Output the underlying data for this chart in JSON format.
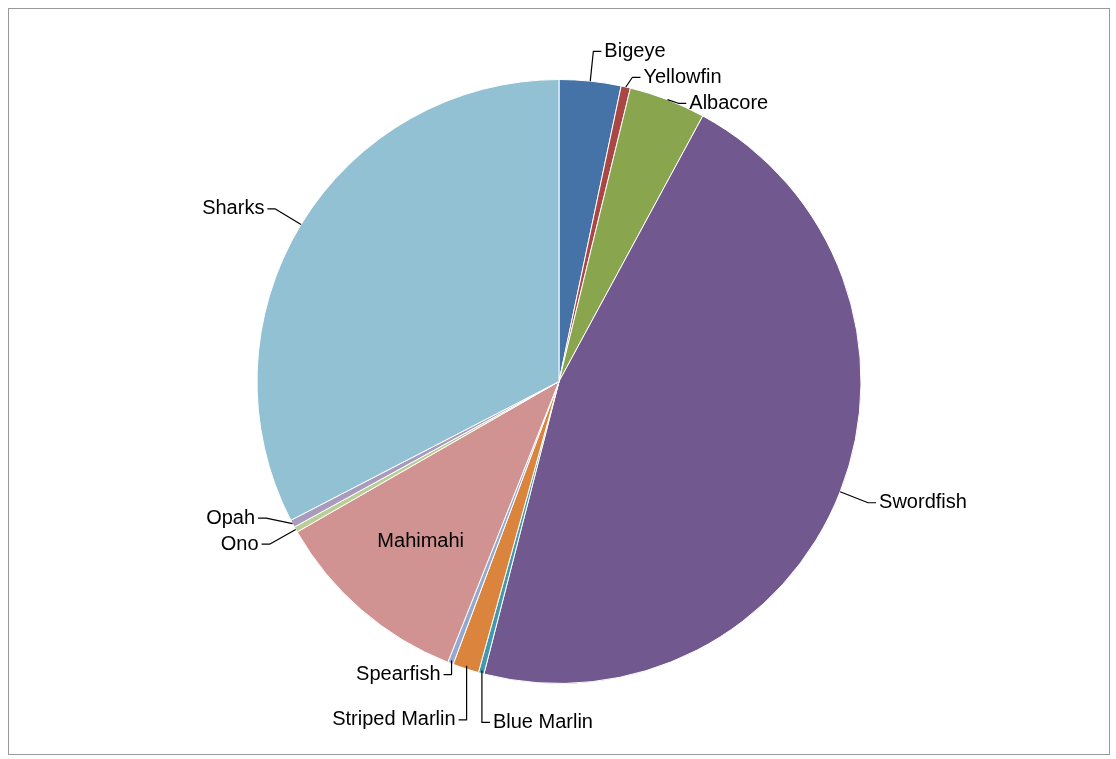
{
  "chart_data": {
    "type": "pie",
    "categories": [
      "Bigeye",
      "Yellowfin",
      "Albacore",
      "Swordfish",
      "Blue Marlin",
      "Striped Marlin",
      "Spearfish",
      "Mahimahi",
      "Ono",
      "Opah",
      "Sharks"
    ],
    "values": [
      3.3,
      0.5,
      4.1,
      46.1,
      0.3,
      1.4,
      0.3,
      10.7,
      0.3,
      0.4,
      32.6
    ],
    "colors": [
      "#4572a7",
      "#aa4643",
      "#89a54e",
      "#71588f",
      "#4198af",
      "#db843d",
      "#93a9cf",
      "#d19392",
      "#b9cd96",
      "#a99bbd",
      "#92c1d3"
    ]
  }
}
